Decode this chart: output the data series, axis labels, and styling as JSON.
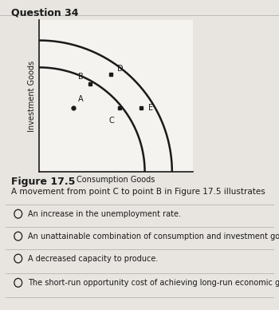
{
  "title": "Question 34",
  "figure_label": "Figure 17.5",
  "xlabel": "Consumption Goods",
  "ylabel": "Investment Goods",
  "question_text": "A movement from point C to point B in Figure 17.5 illustrates",
  "options": [
    "An increase in the unemployment rate.",
    "An unattainable combination of consumption and investment goods.",
    "A decreased capacity to produce.",
    "The short-run opportunity cost of achieving long-run economic growth."
  ],
  "inner_curve_scale": 0.62,
  "outer_curve_scale": 0.78,
  "points": {
    "A": [
      0.2,
      0.38
    ],
    "B": [
      0.3,
      0.52
    ],
    "C": [
      0.47,
      0.38
    ],
    "D": [
      0.42,
      0.58
    ],
    "E": [
      0.6,
      0.38
    ]
  },
  "bg_color": "#e8e5e0",
  "plot_bg": "#f5f3f0",
  "curve_color": "#1a1a1a",
  "axis_color": "#1a1a1a",
  "point_color": "#1a1a1a",
  "text_color": "#1a1a1a",
  "separator_color": "#bbbbbb",
  "title_fontsize": 9,
  "label_fontsize": 7,
  "point_fontsize": 7,
  "question_fontsize": 7.5,
  "option_fontsize": 7
}
